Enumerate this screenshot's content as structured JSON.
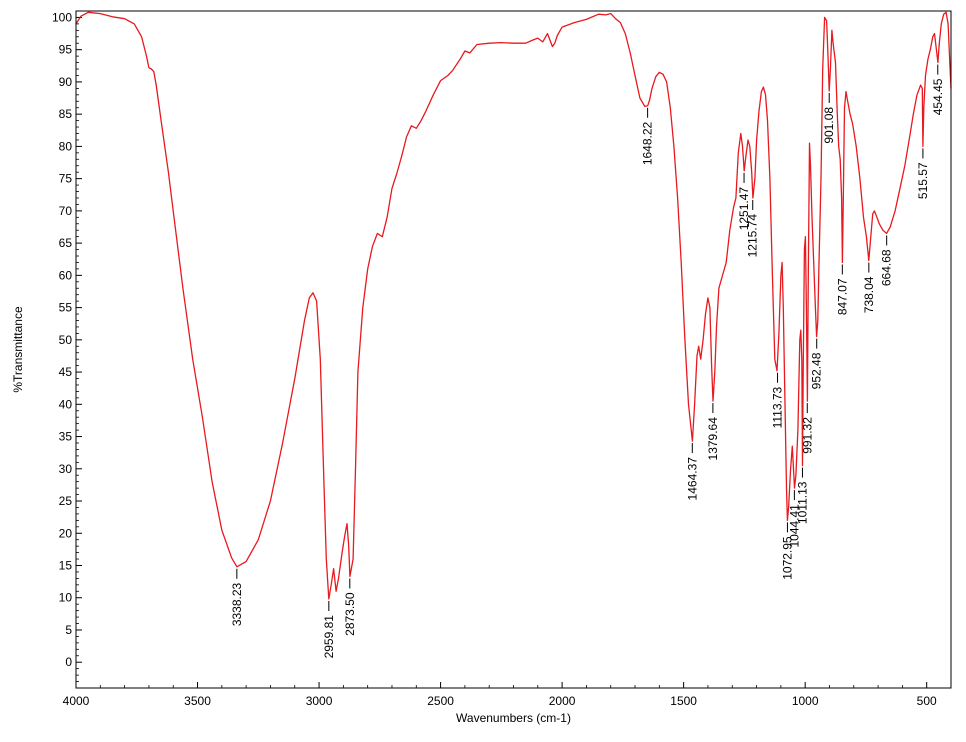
{
  "chart_data": {
    "type": "line",
    "title": "",
    "xlabel": "Wavenumbers (cm-1)",
    "ylabel": "%Transmittance",
    "xlim": [
      4000,
      400
    ],
    "ylim": [
      -4,
      101
    ],
    "x_reversed": true,
    "grid": false,
    "legend": "none",
    "x_ticks": [
      4000,
      3500,
      3000,
      2500,
      2000,
      1500,
      1000,
      500
    ],
    "y_ticks": [
      0,
      5,
      10,
      15,
      20,
      25,
      30,
      35,
      40,
      45,
      50,
      55,
      60,
      65,
      70,
      75,
      80,
      85,
      90,
      95,
      100
    ],
    "colors": {
      "line": "#e8191f",
      "axis": "#000000"
    },
    "series": [
      {
        "points": [
          [
            4000,
            99.0
          ],
          [
            3980,
            100.2
          ],
          [
            3950,
            100.8
          ],
          [
            3900,
            100.6
          ],
          [
            3850,
            100.1
          ],
          [
            3800,
            99.8
          ],
          [
            3760,
            99.0
          ],
          [
            3730,
            97.0
          ],
          [
            3710,
            94.0
          ],
          [
            3700,
            92.2
          ],
          [
            3690,
            92.0
          ],
          [
            3680,
            91.6
          ],
          [
            3670,
            89.5
          ],
          [
            3650,
            84.0
          ],
          [
            3620,
            76.0
          ],
          [
            3600,
            70.0
          ],
          [
            3560,
            58.0
          ],
          [
            3520,
            47.0
          ],
          [
            3480,
            38.0
          ],
          [
            3440,
            28.0
          ],
          [
            3400,
            20.5
          ],
          [
            3360,
            16.2
          ],
          [
            3338,
            14.8
          ],
          [
            3300,
            15.6
          ],
          [
            3250,
            19.0
          ],
          [
            3200,
            25.0
          ],
          [
            3150,
            34.0
          ],
          [
            3100,
            44.0
          ],
          [
            3060,
            53.0
          ],
          [
            3040,
            56.5
          ],
          [
            3025,
            57.3
          ],
          [
            3010,
            56.0
          ],
          [
            2995,
            47.0
          ],
          [
            2980,
            28.0
          ],
          [
            2970,
            16.0
          ],
          [
            2960,
            9.8
          ],
          [
            2950,
            12.0
          ],
          [
            2940,
            14.5
          ],
          [
            2930,
            11.0
          ],
          [
            2920,
            13.0
          ],
          [
            2905,
            17.0
          ],
          [
            2895,
            19.5
          ],
          [
            2885,
            21.5
          ],
          [
            2878,
            18.0
          ],
          [
            2873,
            13.3
          ],
          [
            2860,
            16.0
          ],
          [
            2850,
            30.0
          ],
          [
            2840,
            45.0
          ],
          [
            2820,
            55.0
          ],
          [
            2800,
            61.0
          ],
          [
            2780,
            64.5
          ],
          [
            2760,
            66.5
          ],
          [
            2740,
            66.0
          ],
          [
            2720,
            69.0
          ],
          [
            2700,
            73.5
          ],
          [
            2680,
            75.8
          ],
          [
            2660,
            78.5
          ],
          [
            2640,
            81.5
          ],
          [
            2620,
            83.2
          ],
          [
            2600,
            82.8
          ],
          [
            2580,
            84.0
          ],
          [
            2560,
            85.5
          ],
          [
            2530,
            88.0
          ],
          [
            2500,
            90.2
          ],
          [
            2470,
            91.0
          ],
          [
            2450,
            91.8
          ],
          [
            2420,
            93.5
          ],
          [
            2400,
            94.8
          ],
          [
            2380,
            94.5
          ],
          [
            2350,
            95.8
          ],
          [
            2300,
            96.0
          ],
          [
            2250,
            96.1
          ],
          [
            2200,
            96.0
          ],
          [
            2150,
            96.0
          ],
          [
            2120,
            96.5
          ],
          [
            2100,
            96.8
          ],
          [
            2080,
            96.2
          ],
          [
            2060,
            97.5
          ],
          [
            2040,
            95.5
          ],
          [
            2030,
            96.0
          ],
          [
            2020,
            97.2
          ],
          [
            2000,
            98.5
          ],
          [
            1950,
            99.2
          ],
          [
            1900,
            99.7
          ],
          [
            1850,
            100.5
          ],
          [
            1820,
            100.4
          ],
          [
            1800,
            100.6
          ],
          [
            1780,
            99.8
          ],
          [
            1760,
            99.2
          ],
          [
            1740,
            97.5
          ],
          [
            1720,
            94.5
          ],
          [
            1700,
            91.0
          ],
          [
            1680,
            87.5
          ],
          [
            1660,
            86.2
          ],
          [
            1648,
            86.3
          ],
          [
            1640,
            87.2
          ],
          [
            1630,
            89.0
          ],
          [
            1615,
            90.8
          ],
          [
            1600,
            91.5
          ],
          [
            1585,
            91.2
          ],
          [
            1570,
            90.0
          ],
          [
            1555,
            86.0
          ],
          [
            1540,
            80.0
          ],
          [
            1525,
            72.0
          ],
          [
            1510,
            62.0
          ],
          [
            1495,
            50.0
          ],
          [
            1480,
            40.0
          ],
          [
            1464,
            34.3
          ],
          [
            1455,
            40.0
          ],
          [
            1445,
            47.5
          ],
          [
            1438,
            49.0
          ],
          [
            1430,
            47.0
          ],
          [
            1420,
            50.0
          ],
          [
            1410,
            54.0
          ],
          [
            1400,
            56.5
          ],
          [
            1392,
            55.0
          ],
          [
            1385,
            46.0
          ],
          [
            1379,
            40.5
          ],
          [
            1372,
            45.0
          ],
          [
            1365,
            52.0
          ],
          [
            1355,
            58.0
          ],
          [
            1340,
            60.0
          ],
          [
            1325,
            62.0
          ],
          [
            1310,
            67.0
          ],
          [
            1295,
            70.5
          ],
          [
            1285,
            72.0
          ],
          [
            1275,
            79.0
          ],
          [
            1265,
            82.0
          ],
          [
            1258,
            80.0
          ],
          [
            1251,
            76.2
          ],
          [
            1244,
            78.5
          ],
          [
            1235,
            81.0
          ],
          [
            1228,
            80.0
          ],
          [
            1220,
            76.0
          ],
          [
            1215,
            72.0
          ],
          [
            1207,
            75.0
          ],
          [
            1200,
            81.0
          ],
          [
            1190,
            85.5
          ],
          [
            1180,
            88.5
          ],
          [
            1172,
            89.2
          ],
          [
            1163,
            88.0
          ],
          [
            1155,
            84.0
          ],
          [
            1145,
            75.0
          ],
          [
            1135,
            60.0
          ],
          [
            1125,
            47.0
          ],
          [
            1116,
            45.2
          ],
          [
            1108,
            51.0
          ],
          [
            1100,
            60.0
          ],
          [
            1095,
            62.0
          ],
          [
            1090,
            55.0
          ],
          [
            1083,
            40.0
          ],
          [
            1077,
            27.0
          ],
          [
            1073,
            22.0
          ],
          [
            1068,
            24.0
          ],
          [
            1060,
            30.0
          ],
          [
            1053,
            33.5
          ],
          [
            1048,
            30.0
          ],
          [
            1044,
            27.0
          ],
          [
            1038,
            29.0
          ],
          [
            1030,
            36.0
          ],
          [
            1022,
            50.0
          ],
          [
            1018,
            51.5
          ],
          [
            1014,
            47.0
          ],
          [
            1011,
            30.5
          ],
          [
            1008,
            45.0
          ],
          [
            1003,
            64.0
          ],
          [
            999,
            66.0
          ],
          [
            995,
            55.0
          ],
          [
            991,
            40.5
          ],
          [
            987,
            60.0
          ],
          [
            982,
            80.5
          ],
          [
            978,
            77.0
          ],
          [
            972,
            69.0
          ],
          [
            965,
            62.0
          ],
          [
            958,
            55.0
          ],
          [
            953,
            50.5
          ],
          [
            948,
            53.0
          ],
          [
            943,
            62.0
          ],
          [
            935,
            75.0
          ],
          [
            928,
            92.0
          ],
          [
            920,
            100.0
          ],
          [
            912,
            99.5
          ],
          [
            906,
            94.0
          ],
          [
            901,
            88.6
          ],
          [
            896,
            92.0
          ],
          [
            890,
            98.0
          ],
          [
            885,
            96.0
          ],
          [
            875,
            93.0
          ],
          [
            868,
            85.0
          ],
          [
            862,
            80.0
          ],
          [
            856,
            78.0
          ],
          [
            850,
            72.0
          ],
          [
            847,
            62.0
          ],
          [
            843,
            72.0
          ],
          [
            838,
            86.0
          ],
          [
            832,
            88.5
          ],
          [
            825,
            87.0
          ],
          [
            815,
            85.0
          ],
          [
            805,
            83.5
          ],
          [
            790,
            80.0
          ],
          [
            775,
            75.0
          ],
          [
            760,
            69.0
          ],
          [
            748,
            66.0
          ],
          [
            738,
            62.3
          ],
          [
            730,
            66.0
          ],
          [
            722,
            69.5
          ],
          [
            715,
            70.0
          ],
          [
            705,
            69.0
          ],
          [
            695,
            68.0
          ],
          [
            680,
            67.0
          ],
          [
            665,
            66.5
          ],
          [
            650,
            67.5
          ],
          [
            630,
            70.0
          ],
          [
            610,
            73.5
          ],
          [
            590,
            77.0
          ],
          [
            570,
            81.5
          ],
          [
            555,
            85.0
          ],
          [
            540,
            88.0
          ],
          [
            525,
            89.5
          ],
          [
            518,
            89.0
          ],
          [
            515.57,
            80.0
          ],
          [
            512,
            86.0
          ],
          [
            505,
            91.0
          ],
          [
            495,
            93.5
          ],
          [
            485,
            95.0
          ],
          [
            475,
            97.0
          ],
          [
            468,
            97.5
          ],
          [
            460,
            95.0
          ],
          [
            454,
            93.0
          ],
          [
            448,
            96.0
          ],
          [
            440,
            99.0
          ],
          [
            430,
            100.5
          ],
          [
            420,
            100.8
          ],
          [
            412,
            99.0
          ],
          [
            405,
            93.0
          ],
          [
            400,
            89.0
          ]
        ]
      }
    ],
    "peak_labels": [
      {
        "label": "3338.23",
        "x": 3338.23,
        "y": 14.8
      },
      {
        "label": "2959.81",
        "x": 2959.81,
        "y": 9.8
      },
      {
        "label": "2873.50",
        "x": 2873.5,
        "y": 13.3
      },
      {
        "label": "1648.22",
        "x": 1648.22,
        "y": 86.3
      },
      {
        "label": "1464.37",
        "x": 1464.37,
        "y": 34.3
      },
      {
        "label": "1379.64",
        "x": 1379.64,
        "y": 40.5
      },
      {
        "label": "1251.47",
        "x": 1251.47,
        "y": 76.2
      },
      {
        "label": "1215.74",
        "x": 1215.74,
        "y": 72.0
      },
      {
        "label": "1113.73",
        "x": 1113.73,
        "y": 45.2
      },
      {
        "label": "1072.95",
        "x": 1072.95,
        "y": 22.0
      },
      {
        "label": "1044.41",
        "x": 1044.41,
        "y": 27.0
      },
      {
        "label": "1011.13",
        "x": 1011.13,
        "y": 30.5
      },
      {
        "label": "991.32",
        "x": 991.32,
        "y": 40.5
      },
      {
        "label": "952.48",
        "x": 952.48,
        "y": 50.5
      },
      {
        "label": "901.08",
        "x": 901.08,
        "y": 88.6
      },
      {
        "label": "847.07",
        "x": 847.07,
        "y": 62.0
      },
      {
        "label": "738.04",
        "x": 738.04,
        "y": 62.3
      },
      {
        "label": "664.68",
        "x": 664.68,
        "y": 66.5
      },
      {
        "label": "515.57",
        "x": 515.57,
        "y": 80.0
      },
      {
        "label": "454.45",
        "x": 454.45,
        "y": 93.0
      }
    ]
  }
}
